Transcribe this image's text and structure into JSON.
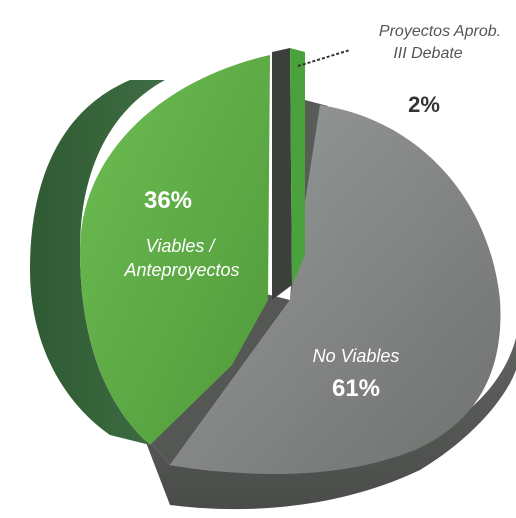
{
  "chart_data": {
    "type": "pie",
    "style": "3d-exploded",
    "slices": [
      {
        "label": "No Viables",
        "value": 61,
        "value_label": "61%",
        "color": "#8a8c8b"
      },
      {
        "label": "Viables /\nAnteproyectos",
        "label_lines": [
          "Viables /",
          "Anteproyectos"
        ],
        "value": 36,
        "value_label": "36%",
        "color": "#5fae48"
      },
      {
        "label": "Proyectos Aprob.\nIII Debate",
        "label_lines": [
          "Proyectos Aprob.",
          "III Debate"
        ],
        "value": 2,
        "value_label": "2%",
        "color": "#4aa23c"
      }
    ],
    "legend": "none"
  }
}
